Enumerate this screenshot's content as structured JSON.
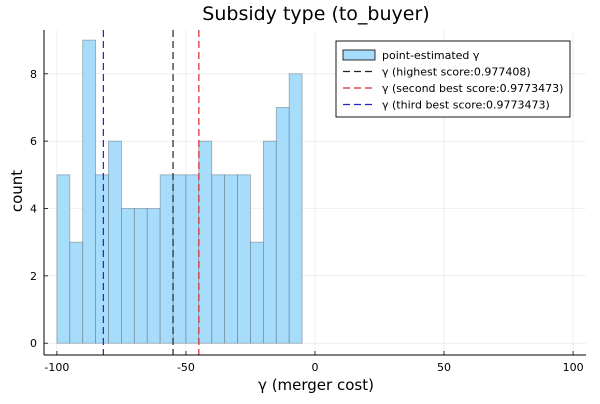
{
  "chart_data": {
    "type": "bar",
    "title": "Subsidy type (to_buyer)",
    "xlabel": "γ (merger cost)",
    "ylabel": "count",
    "xlim": [
      -105,
      105
    ],
    "ylim": [
      -0.35,
      9.3
    ],
    "xticks": [
      -100,
      -50,
      0,
      50,
      100
    ],
    "yticks": [
      0,
      2,
      4,
      6,
      8
    ],
    "grid": true,
    "legend_position": "top-right",
    "bin_width": 5,
    "bins": [
      {
        "x0": -100,
        "x1": -95,
        "count": 5
      },
      {
        "x0": -95,
        "x1": -90,
        "count": 3
      },
      {
        "x0": -90,
        "x1": -85,
        "count": 9
      },
      {
        "x0": -85,
        "x1": -80,
        "count": 5
      },
      {
        "x0": -80,
        "x1": -75,
        "count": 6
      },
      {
        "x0": -75,
        "x1": -70,
        "count": 4
      },
      {
        "x0": -70,
        "x1": -65,
        "count": 4
      },
      {
        "x0": -65,
        "x1": -60,
        "count": 4
      },
      {
        "x0": -60,
        "x1": -55,
        "count": 5
      },
      {
        "x0": -55,
        "x1": -50,
        "count": 5
      },
      {
        "x0": -50,
        "x1": -45,
        "count": 5
      },
      {
        "x0": -45,
        "x1": -40,
        "count": 6
      },
      {
        "x0": -40,
        "x1": -35,
        "count": 5
      },
      {
        "x0": -35,
        "x1": -30,
        "count": 5
      },
      {
        "x0": -30,
        "x1": -25,
        "count": 5
      },
      {
        "x0": -25,
        "x1": -20,
        "count": 3
      },
      {
        "x0": -20,
        "x1": -15,
        "count": 6
      },
      {
        "x0": -15,
        "x1": -10,
        "count": 7
      },
      {
        "x0": -10,
        "x1": -5,
        "count": 8
      }
    ],
    "vlines": [
      {
        "name": "γ (highest score:0.977408)",
        "x": -55,
        "color": "#222222"
      },
      {
        "name": "γ (second best score:0.9773473)",
        "x": -45,
        "color": "#e0252a"
      },
      {
        "name": "γ (third best score:0.9773473)",
        "x": -82,
        "color": "#2222c8"
      }
    ],
    "series": [
      {
        "name": "point-estimated γ",
        "color": "#a8dcfb"
      }
    ]
  }
}
